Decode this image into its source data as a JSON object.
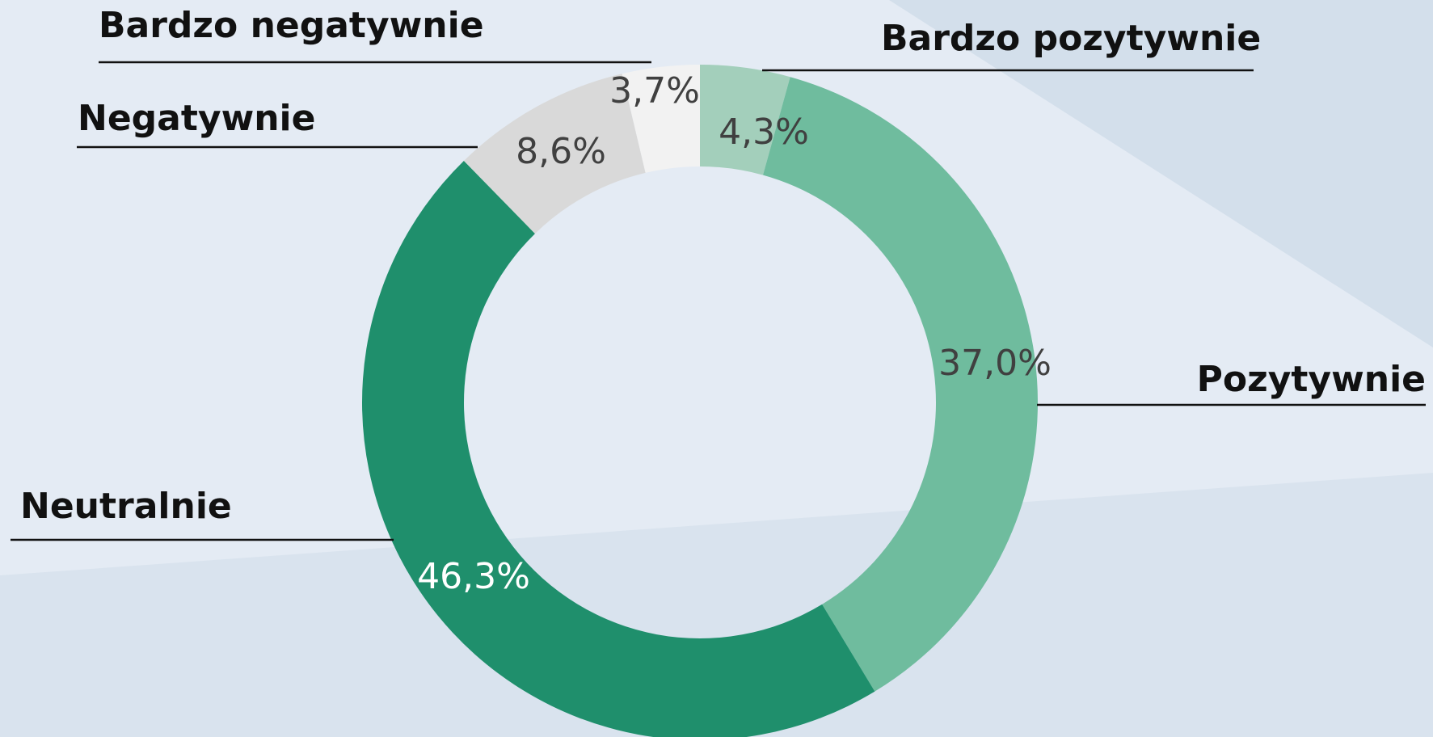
{
  "chart_data": {
    "type": "donut",
    "categories": [
      "Bardzo pozytywnie",
      "Pozytywnie",
      "Neutralnie",
      "Negatywnie",
      "Bardzo negatywnie"
    ],
    "values": [
      4.3,
      37.0,
      46.3,
      8.6,
      3.7
    ],
    "value_labels": [
      "4,3%",
      "37,0%",
      "46,3%",
      "8,6%",
      "3,7%"
    ],
    "colors": [
      "#a3cfbb",
      "#6fbc9e",
      "#1f8f6c",
      "#d9d9d9",
      "#f2f2f2"
    ]
  }
}
